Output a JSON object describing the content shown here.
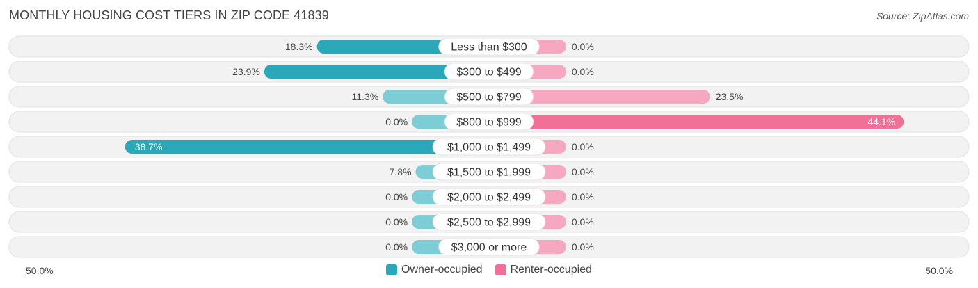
{
  "title": "MONTHLY HOUSING COST TIERS IN ZIP CODE 41839",
  "source": "Source: ZipAtlas.com",
  "colors": {
    "owner": "#2aa8b9",
    "owner_light": "#7ccdd6",
    "renter": "#f07098",
    "renter_light": "#f6a8c0",
    "row_bg": "#f2f2f2",
    "row_border": "#e2e2e2"
  },
  "legend": {
    "owner_label": "Owner-occupied",
    "renter_label": "Renter-occupied"
  },
  "axis": {
    "left_label": "50.0%",
    "right_label": "50.0%"
  },
  "chart_data": {
    "type": "bar",
    "orientation": "diverging-horizontal",
    "xlim": [
      -50,
      50
    ],
    "categories": [
      "Less than $300",
      "$300 to $499",
      "$500 to $799",
      "$800 to $999",
      "$1,000 to $1,499",
      "$1,500 to $1,999",
      "$2,000 to $2,499",
      "$2,500 to $2,999",
      "$3,000 or more"
    ],
    "series": [
      {
        "name": "Owner-occupied",
        "values": [
          18.3,
          23.9,
          11.3,
          0.0,
          38.7,
          7.8,
          0.0,
          0.0,
          0.0
        ],
        "labels": [
          "18.3%",
          "23.9%",
          "11.3%",
          "0.0%",
          "38.7%",
          "7.8%",
          "0.0%",
          "0.0%",
          "0.0%"
        ]
      },
      {
        "name": "Renter-occupied",
        "values": [
          0.0,
          0.0,
          23.5,
          44.1,
          0.0,
          0.0,
          0.0,
          0.0,
          0.0
        ],
        "labels": [
          "0.0%",
          "0.0%",
          "23.5%",
          "44.1%",
          "0.0%",
          "0.0%",
          "0.0%",
          "0.0%",
          "0.0%"
        ]
      }
    ]
  }
}
